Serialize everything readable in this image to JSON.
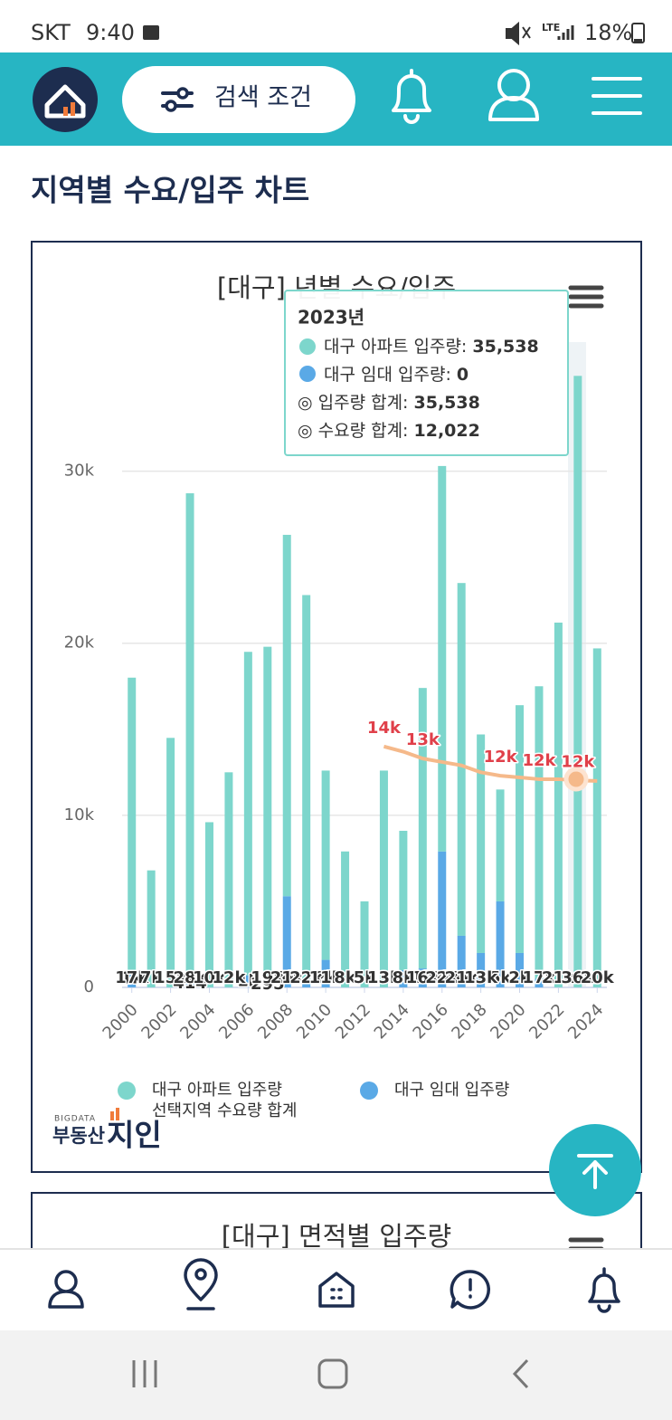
{
  "status_bar": {
    "carrier": "SKT",
    "time": "9:40",
    "network": "LTE",
    "battery": "18%"
  },
  "header": {
    "search_button": "검색 조건"
  },
  "page_title": "지역별 수요/입주 차트",
  "chart_data": {
    "type": "bar",
    "stacked": true,
    "title": "[대구] 년별 수요/입주",
    "x": [
      2000,
      2001,
      2002,
      2003,
      2004,
      2005,
      2006,
      2007,
      2008,
      2009,
      2010,
      2011,
      2012,
      2013,
      2014,
      2015,
      2016,
      2017,
      2018,
      2019,
      2020,
      2021,
      2022,
      2023,
      2024
    ],
    "xlim": [
      1999.5,
      2024.5
    ],
    "xticks": [
      2000,
      2002,
      2004,
      2006,
      2008,
      2010,
      2012,
      2014,
      2016,
      2018,
      2020,
      2022,
      2024
    ],
    "ylim": [
      0,
      37500
    ],
    "yticks": [
      0,
      {
        "value": 10000,
        "label": "10k"
      },
      {
        "value": 20000,
        "label": "20k"
      },
      {
        "value": 30000,
        "label": "30k"
      }
    ],
    "grid": true,
    "series": [
      {
        "name": "대구 아파트 입주량",
        "type": "bar",
        "color": "#7dd6cc",
        "values": [
          17000,
          6800,
          14500,
          28300,
          9600,
          12500,
          18800,
          19500,
          21000,
          22400,
          11000,
          7900,
          5000,
          12600,
          8100,
          16300,
          22400,
          20500,
          12700,
          6500,
          14400,
          17000,
          21200,
          35538,
          19700
        ],
        "value_labels": [
          "17k",
          "7k",
          "15k",
          "28k",
          "10k",
          "12k",
          null,
          "19k",
          "21k",
          "22k",
          "11k",
          "8k",
          "5k",
          "13k",
          "8k",
          "16k",
          "22k",
          "21k",
          "13k",
          null,
          null,
          "17k",
          "21k",
          "36k",
          "20k"
        ]
      },
      {
        "name": "대구 임대 입주량",
        "type": "bar",
        "color": "#5aa9e6",
        "values": [
          1000,
          0,
          0,
          414,
          0,
          0,
          700,
          295,
          5300,
          400,
          1600,
          0,
          0,
          0,
          1000,
          1100,
          7900,
          3000,
          2000,
          5000,
          2000,
          500,
          0,
          0,
          0
        ],
        "value_labels": [
          "1k",
          null,
          null,
          "414",
          null,
          null,
          "1k",
          "295",
          "5k",
          null,
          "2k",
          null,
          null,
          null,
          null,
          "1k",
          "8k",
          "3k",
          null,
          "5k",
          "2k",
          null,
          null,
          null,
          null
        ]
      },
      {
        "name": "선택지역 수요량 합계",
        "type": "line",
        "color": "#f5b98a",
        "label_color": "#e0404a",
        "values": [
          null,
          null,
          null,
          null,
          null,
          null,
          null,
          null,
          null,
          null,
          null,
          null,
          null,
          14000,
          13700,
          13300,
          13100,
          12900,
          12500,
          12300,
          12200,
          12100,
          12100,
          12022,
          12000
        ],
        "value_labels": [
          null,
          null,
          null,
          null,
          null,
          null,
          null,
          null,
          null,
          null,
          null,
          null,
          null,
          "14k",
          null,
          "13k",
          null,
          null,
          null,
          "12k",
          null,
          "12k",
          null,
          "12k",
          null
        ]
      }
    ]
  },
  "tooltip": {
    "title": "2023년",
    "items": [
      {
        "label": "대구 아파트 입주량: ",
        "value": "35,538"
      },
      {
        "label": "대구 임대 입주량: ",
        "value": "0"
      },
      {
        "label": "◎ 입주량 합계: ",
        "value": "35,538"
      },
      {
        "label": "◎ 수요량 합계: ",
        "value": "12,022"
      }
    ]
  },
  "logo": {
    "top": "BIGDATA",
    "left": "부동산",
    "right": "지인"
  },
  "next_card_title": "[대구] 면적별 입주량"
}
